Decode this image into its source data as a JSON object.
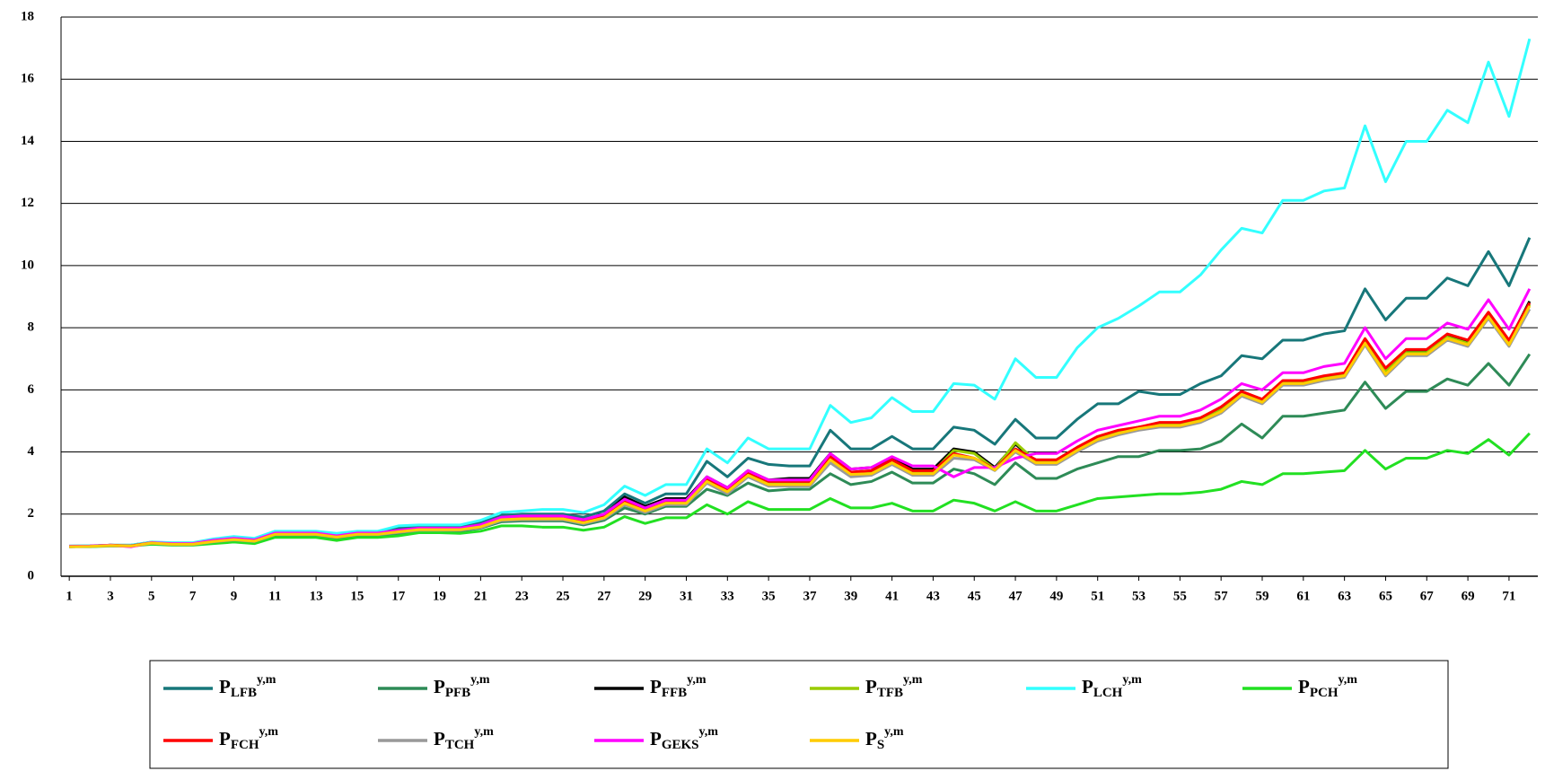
{
  "chart_data": {
    "type": "line",
    "legend_symbol": "P",
    "legend_superscript": "y,m",
    "x": [
      1,
      2,
      3,
      4,
      5,
      6,
      7,
      8,
      9,
      10,
      11,
      12,
      13,
      14,
      15,
      16,
      17,
      18,
      19,
      20,
      21,
      22,
      23,
      24,
      25,
      26,
      27,
      28,
      29,
      30,
      31,
      32,
      33,
      34,
      35,
      36,
      37,
      38,
      39,
      40,
      41,
      42,
      43,
      44,
      45,
      46,
      47,
      48,
      49,
      50,
      51,
      52,
      53,
      54,
      55,
      56,
      57,
      58,
      59,
      60,
      61,
      62,
      63,
      64,
      65,
      66,
      67,
      68,
      69,
      70,
      71,
      72
    ],
    "xlim": [
      0.6,
      72.4
    ],
    "xticks": [
      1,
      3,
      5,
      7,
      9,
      11,
      13,
      15,
      17,
      19,
      21,
      23,
      25,
      27,
      29,
      31,
      33,
      35,
      37,
      39,
      41,
      43,
      45,
      47,
      49,
      51,
      53,
      55,
      57,
      59,
      61,
      63,
      65,
      67,
      69,
      71
    ],
    "ylim": [
      0,
      18
    ],
    "yticks": [
      0,
      2,
      4,
      6,
      8,
      10,
      12,
      14,
      16,
      18
    ],
    "grid": true,
    "legend_position": "bottom",
    "series": [
      {
        "name": "LFB",
        "color": "#17777a",
        "values": [
          0.97,
          0.98,
          1.0,
          1.0,
          1.1,
          1.06,
          1.06,
          1.18,
          1.25,
          1.2,
          1.42,
          1.42,
          1.42,
          1.35,
          1.42,
          1.42,
          1.55,
          1.6,
          1.6,
          1.6,
          1.72,
          1.95,
          2.0,
          2.0,
          2.0,
          1.9,
          2.1,
          2.65,
          2.35,
          2.65,
          2.65,
          3.7,
          3.2,
          3.8,
          3.6,
          3.55,
          3.55,
          4.7,
          4.1,
          4.1,
          4.5,
          4.1,
          4.1,
          4.8,
          4.7,
          4.25,
          5.05,
          4.45,
          4.45,
          5.05,
          5.55,
          5.55,
          5.95,
          5.85,
          5.85,
          6.2,
          6.45,
          7.1,
          7.0,
          7.6,
          7.6,
          7.8,
          7.9,
          9.25,
          8.25,
          8.95,
          8.95,
          9.6,
          9.35,
          10.45,
          9.35,
          10.9
        ]
      },
      {
        "name": "PFB",
        "color": "#2e8b57",
        "values": [
          0.95,
          0.96,
          0.98,
          0.98,
          1.05,
          1.02,
          1.02,
          1.1,
          1.15,
          1.1,
          1.3,
          1.3,
          1.3,
          1.2,
          1.3,
          1.3,
          1.38,
          1.45,
          1.45,
          1.45,
          1.55,
          1.75,
          1.78,
          1.78,
          1.78,
          1.65,
          1.8,
          2.2,
          2.0,
          2.25,
          2.25,
          2.8,
          2.6,
          3.0,
          2.75,
          2.8,
          2.8,
          3.3,
          2.95,
          3.05,
          3.35,
          3.0,
          3.0,
          3.45,
          3.3,
          2.95,
          3.65,
          3.15,
          3.15,
          3.45,
          3.65,
          3.85,
          3.85,
          4.05,
          4.05,
          4.1,
          4.35,
          4.9,
          4.45,
          5.15,
          5.15,
          5.25,
          5.35,
          6.25,
          5.4,
          5.95,
          5.95,
          6.35,
          6.15,
          6.85,
          6.15,
          7.15
        ]
      },
      {
        "name": "FFB",
        "color": "#000000",
        "values": [
          0.96,
          0.97,
          1.0,
          0.98,
          1.08,
          1.04,
          1.04,
          1.14,
          1.2,
          1.15,
          1.38,
          1.38,
          1.38,
          1.29,
          1.38,
          1.38,
          1.47,
          1.53,
          1.53,
          1.53,
          1.64,
          1.88,
          1.92,
          1.92,
          1.92,
          1.8,
          1.98,
          2.55,
          2.25,
          2.5,
          2.5,
          3.2,
          2.85,
          3.4,
          3.1,
          3.15,
          3.15,
          3.95,
          3.45,
          3.5,
          3.8,
          3.45,
          3.45,
          4.1,
          4.0,
          3.5,
          4.25,
          3.7,
          3.7,
          4.1,
          4.45,
          4.65,
          4.8,
          4.9,
          4.9,
          5.05,
          5.4,
          5.95,
          5.65,
          6.25,
          6.25,
          6.4,
          6.5,
          7.6,
          6.65,
          7.25,
          7.25,
          7.75,
          7.55,
          8.45,
          7.55,
          8.85
        ]
      },
      {
        "name": "TFB",
        "color": "#99cc00",
        "values": [
          0.95,
          0.96,
          0.99,
          0.97,
          1.07,
          1.03,
          1.03,
          1.13,
          1.19,
          1.14,
          1.36,
          1.36,
          1.36,
          1.27,
          1.36,
          1.36,
          1.44,
          1.5,
          1.5,
          1.5,
          1.6,
          1.83,
          1.86,
          1.86,
          1.86,
          1.73,
          1.9,
          2.38,
          2.12,
          2.38,
          2.38,
          3.1,
          2.75,
          3.3,
          3.0,
          3.0,
          3.0,
          3.8,
          3.3,
          3.35,
          3.7,
          3.35,
          3.35,
          4.05,
          3.95,
          3.45,
          4.3,
          3.7,
          3.7,
          4.1,
          4.45,
          4.65,
          4.75,
          4.9,
          4.9,
          5.05,
          5.4,
          5.9,
          5.65,
          6.25,
          6.25,
          6.4,
          6.5,
          7.6,
          6.6,
          7.2,
          7.2,
          7.7,
          7.5,
          8.4,
          7.5,
          8.75
        ]
      },
      {
        "name": "LCH",
        "color": "#33ffff",
        "values": [
          0.97,
          0.98,
          1.0,
          1.0,
          1.1,
          1.08,
          1.08,
          1.2,
          1.28,
          1.22,
          1.45,
          1.45,
          1.45,
          1.38,
          1.45,
          1.45,
          1.62,
          1.65,
          1.65,
          1.65,
          1.8,
          2.05,
          2.1,
          2.15,
          2.15,
          2.05,
          2.3,
          2.9,
          2.6,
          2.95,
          2.95,
          4.1,
          3.65,
          4.45,
          4.1,
          4.1,
          4.1,
          5.5,
          4.95,
          5.1,
          5.75,
          5.3,
          5.3,
          6.2,
          6.15,
          5.7,
          7.0,
          6.4,
          6.4,
          7.35,
          8.0,
          8.3,
          8.7,
          9.15,
          9.15,
          9.7,
          10.5,
          11.2,
          11.05,
          12.1,
          12.1,
          12.4,
          12.5,
          14.5,
          12.7,
          14.0,
          14.0,
          15.0,
          14.6,
          16.55,
          14.8,
          17.3
        ]
      },
      {
        "name": "PCH",
        "color": "#22e022",
        "values": [
          0.95,
          0.95,
          0.97,
          0.97,
          1.03,
          1.0,
          1.0,
          1.05,
          1.1,
          1.05,
          1.25,
          1.25,
          1.25,
          1.15,
          1.25,
          1.25,
          1.3,
          1.4,
          1.4,
          1.38,
          1.45,
          1.62,
          1.62,
          1.58,
          1.58,
          1.48,
          1.58,
          1.92,
          1.7,
          1.88,
          1.88,
          2.3,
          2.0,
          2.4,
          2.15,
          2.15,
          2.15,
          2.5,
          2.2,
          2.2,
          2.35,
          2.1,
          2.1,
          2.45,
          2.35,
          2.1,
          2.4,
          2.1,
          2.1,
          2.3,
          2.5,
          2.55,
          2.6,
          2.65,
          2.65,
          2.7,
          2.8,
          3.05,
          2.95,
          3.3,
          3.3,
          3.35,
          3.4,
          4.05,
          3.45,
          3.8,
          3.8,
          4.05,
          3.95,
          4.4,
          3.9,
          4.6
        ]
      },
      {
        "name": "FCH",
        "color": "#ff0000",
        "values": [
          0.96,
          0.97,
          1.0,
          0.98,
          1.08,
          1.04,
          1.04,
          1.14,
          1.2,
          1.15,
          1.37,
          1.37,
          1.37,
          1.28,
          1.37,
          1.37,
          1.45,
          1.52,
          1.52,
          1.52,
          1.62,
          1.85,
          1.88,
          1.88,
          1.88,
          1.75,
          1.92,
          2.4,
          2.15,
          2.4,
          2.4,
          3.15,
          2.8,
          3.35,
          3.05,
          3.05,
          3.05,
          3.85,
          3.35,
          3.4,
          3.75,
          3.4,
          3.4,
          3.95,
          3.8,
          3.45,
          4.1,
          3.75,
          3.75,
          4.15,
          4.5,
          4.7,
          4.8,
          4.95,
          4.95,
          5.1,
          5.45,
          5.95,
          5.7,
          6.3,
          6.3,
          6.45,
          6.55,
          7.65,
          6.7,
          7.3,
          7.3,
          7.8,
          7.6,
          8.5,
          7.6,
          8.8
        ]
      },
      {
        "name": "TCH",
        "color": "#999999",
        "values": [
          0.95,
          0.96,
          0.98,
          0.96,
          1.06,
          1.02,
          1.02,
          1.11,
          1.17,
          1.12,
          1.34,
          1.34,
          1.34,
          1.25,
          1.34,
          1.34,
          1.41,
          1.48,
          1.48,
          1.48,
          1.57,
          1.79,
          1.82,
          1.82,
          1.82,
          1.69,
          1.85,
          2.3,
          2.05,
          2.3,
          2.3,
          3.0,
          2.65,
          3.2,
          2.9,
          2.9,
          2.9,
          3.65,
          3.2,
          3.25,
          3.6,
          3.25,
          3.25,
          3.8,
          3.75,
          3.4,
          4.0,
          3.6,
          3.6,
          4.0,
          4.35,
          4.55,
          4.7,
          4.8,
          4.8,
          4.95,
          5.25,
          5.8,
          5.55,
          6.15,
          6.15,
          6.3,
          6.4,
          7.45,
          6.45,
          7.1,
          7.1,
          7.6,
          7.4,
          8.3,
          7.4,
          8.6
        ]
      },
      {
        "name": "GEKS",
        "color": "#ff00ff",
        "values": [
          0.96,
          0.97,
          1.0,
          0.95,
          1.08,
          1.05,
          1.05,
          1.16,
          1.22,
          1.17,
          1.39,
          1.39,
          1.39,
          1.3,
          1.39,
          1.39,
          1.48,
          1.55,
          1.55,
          1.55,
          1.66,
          1.9,
          1.94,
          1.94,
          1.94,
          1.82,
          2.0,
          2.48,
          2.2,
          2.45,
          2.45,
          3.2,
          2.85,
          3.4,
          3.1,
          3.1,
          3.1,
          3.95,
          3.45,
          3.5,
          3.85,
          3.55,
          3.55,
          3.2,
          3.5,
          3.5,
          3.8,
          3.95,
          3.95,
          4.35,
          4.7,
          4.85,
          5.0,
          5.15,
          5.15,
          5.35,
          5.7,
          6.2,
          6.0,
          6.55,
          6.55,
          6.75,
          6.85,
          8.0,
          7.0,
          7.65,
          7.65,
          8.15,
          7.95,
          8.9,
          7.95,
          9.25
        ]
      },
      {
        "name": "S",
        "color": "#ffcc00",
        "values": [
          0.95,
          0.96,
          0.99,
          0.97,
          1.07,
          1.03,
          1.03,
          1.12,
          1.18,
          1.13,
          1.35,
          1.35,
          1.35,
          1.26,
          1.35,
          1.35,
          1.43,
          1.5,
          1.5,
          1.5,
          1.59,
          1.82,
          1.85,
          1.85,
          1.85,
          1.72,
          1.88,
          2.35,
          2.1,
          2.35,
          2.35,
          3.05,
          2.72,
          3.25,
          2.95,
          2.95,
          2.95,
          3.75,
          3.28,
          3.3,
          3.65,
          3.3,
          3.3,
          3.9,
          3.8,
          3.42,
          4.05,
          3.65,
          3.65,
          4.05,
          4.4,
          4.6,
          4.75,
          4.85,
          4.85,
          5.0,
          5.3,
          5.85,
          5.6,
          6.2,
          6.2,
          6.35,
          6.45,
          7.5,
          6.5,
          7.15,
          7.15,
          7.65,
          7.45,
          8.35,
          7.45,
          8.7
        ]
      }
    ]
  }
}
